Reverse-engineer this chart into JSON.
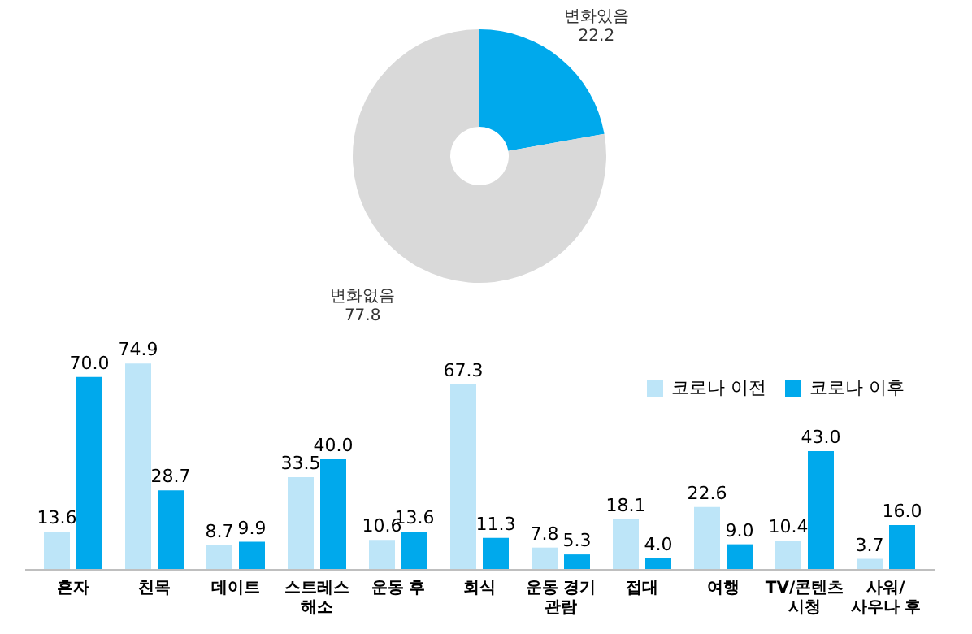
{
  "chart_data": [
    {
      "type": "donut",
      "categories": [
        "변화있음",
        "변화없음"
      ],
      "values": [
        22.2,
        77.8
      ],
      "colors": [
        "#00a9ec",
        "#d9d9d9"
      ],
      "data_labels": true
    },
    {
      "type": "bar",
      "categories": [
        "혼자",
        "친목",
        "데이트",
        "스트레스\n해소",
        "운동 후",
        "회식",
        "운동 경기\n관람",
        "접대",
        "여행",
        "TV/콘텐츠\n시청",
        "사워/\n사우나 후"
      ],
      "series": [
        {
          "name": "코로나 이전",
          "color": "#bde5f8",
          "values": [
            13.6,
            74.9,
            8.7,
            33.5,
            10.6,
            67.3,
            7.8,
            18.1,
            22.6,
            10.4,
            3.7
          ],
          "value_labels": [
            "13.6",
            "74.9",
            "8.7",
            "33.5",
            "10.6",
            "67.3",
            "7.8",
            "18.1",
            "22.6",
            "10.4",
            "3.7"
          ]
        },
        {
          "name": "코로나 이후",
          "color": "#00a9ec",
          "values": [
            70.0,
            28.7,
            9.9,
            40.0,
            13.6,
            11.3,
            5.3,
            4.0,
            9.0,
            43.0,
            16.0
          ],
          "value_labels": [
            "70.0",
            "28.7",
            "9.9",
            "40.0",
            "13.6",
            "11.3",
            "5.3",
            "4.0",
            "9.0",
            "43.0",
            "16.0"
          ]
        }
      ],
      "legend": "top right",
      "tick_labels": "x",
      "grid": false
    }
  ]
}
